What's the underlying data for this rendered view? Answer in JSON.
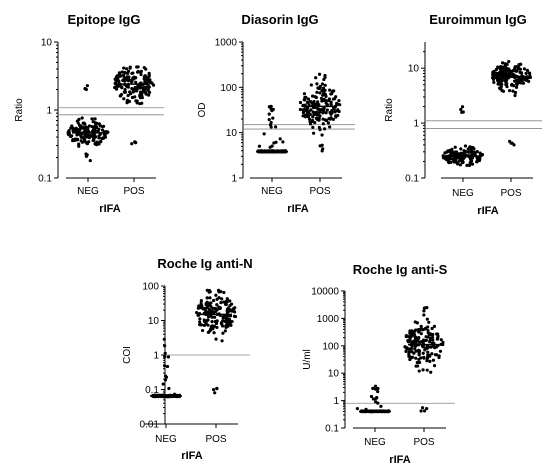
{
  "chart_data": [
    {
      "type": "scatter",
      "title": "Epitope IgG",
      "ylabel": "Ratio",
      "xlabel": "rIFA",
      "scale": "log",
      "ylim": [
        0.1,
        10
      ],
      "yticks": [
        "0.1",
        "1",
        "10"
      ],
      "categories": [
        "NEG",
        "POS"
      ],
      "ref_lines": [
        0.85,
        1.08
      ],
      "groups": [
        {
          "name": "NEG",
          "n": 150,
          "median": 0.46,
          "spread": 0.16,
          "min": 0.17,
          "max": 2.6
        },
        {
          "name": "POS",
          "n": 170,
          "median": 2.4,
          "spread": 0.22,
          "min": 0.3,
          "max": 4.3
        }
      ]
    },
    {
      "type": "scatter",
      "title": "Diasorin IgG",
      "ylabel": "OD",
      "xlabel": "rIFA",
      "scale": "log",
      "ylim": [
        1,
        1000
      ],
      "yticks": [
        "1",
        "10",
        "100",
        "1000"
      ],
      "categories": [
        "NEG",
        "POS"
      ],
      "ref_lines": [
        12,
        15
      ],
      "groups": [
        {
          "name": "NEG",
          "n": 150,
          "median": 3.8,
          "spread": 0.0,
          "min": 3.8,
          "max": 48,
          "floor": true
        },
        {
          "name": "POS",
          "n": 170,
          "median": 38,
          "spread": 0.42,
          "min": 3.8,
          "max": 200
        }
      ]
    },
    {
      "type": "scatter",
      "title": "Euroimmun IgG",
      "ylabel": "Ratio",
      "xlabel": "rIFA",
      "scale": "log",
      "ylim": [
        0.1,
        30
      ],
      "yticks": [
        "0.1",
        "1",
        "10"
      ],
      "categories": [
        "NEG",
        "POS"
      ],
      "ref_lines": [
        0.8,
        1.1
      ],
      "groups": [
        {
          "name": "NEG",
          "n": 150,
          "median": 0.25,
          "spread": 0.14,
          "min": 0.17,
          "max": 2.0
        },
        {
          "name": "POS",
          "n": 170,
          "median": 7.0,
          "spread": 0.2,
          "min": 0.35,
          "max": 14
        }
      ]
    },
    {
      "type": "scatter",
      "title": "Roche Ig anti-N",
      "ylabel": "COI",
      "xlabel": "rIFA",
      "scale": "log",
      "ylim": [
        0.01,
        100
      ],
      "yticks": [
        "0.01",
        "0.1",
        "1",
        "10",
        "100"
      ],
      "categories": [
        "NEG",
        "POS"
      ],
      "ref_lines": [
        1
      ],
      "groups": [
        {
          "name": "NEG",
          "n": 150,
          "median": 0.065,
          "spread": 0.04,
          "min": 0.06,
          "max": 3.0,
          "floor": true
        },
        {
          "name": "POS",
          "n": 170,
          "median": 15,
          "spread": 0.55,
          "min": 0.08,
          "max": 75
        }
      ]
    },
    {
      "type": "scatter",
      "title": "Roche Ig anti-S",
      "ylabel": "U/ml",
      "xlabel": "rIFA",
      "scale": "log",
      "ylim": [
        0.1,
        10000
      ],
      "yticks": [
        "0.1",
        "1",
        "10",
        "100",
        "1000",
        "10000"
      ],
      "categories": [
        "NEG",
        "POS"
      ],
      "ref_lines": [
        0.8
      ],
      "groups": [
        {
          "name": "NEG",
          "n": 150,
          "median": 0.4,
          "spread": 0.0,
          "min": 0.4,
          "max": 3.5,
          "floor": true
        },
        {
          "name": "POS",
          "n": 170,
          "median": 110,
          "spread": 0.7,
          "min": 0.4,
          "max": 2500
        }
      ]
    }
  ]
}
